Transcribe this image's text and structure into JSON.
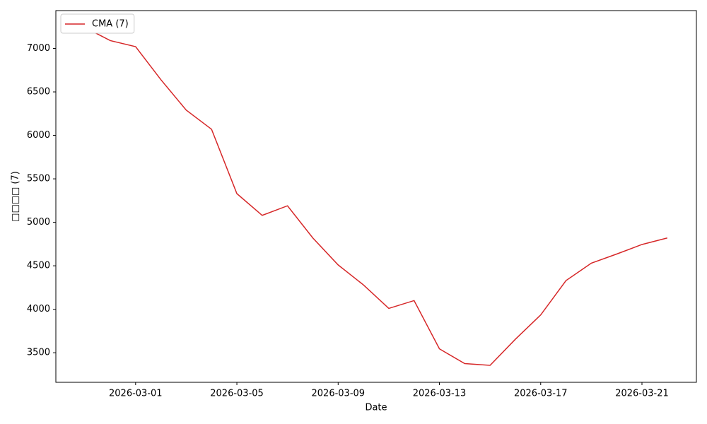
{
  "chart_data": {
    "type": "line",
    "x": [
      "2026-02-27",
      "2026-02-28",
      "2026-03-01",
      "2026-03-02",
      "2026-03-03",
      "2026-03-04",
      "2026-03-05",
      "2026-03-06",
      "2026-03-07",
      "2026-03-08",
      "2026-03-09",
      "2026-03-10",
      "2026-03-11",
      "2026-03-12",
      "2026-03-13",
      "2026-03-14",
      "2026-03-15",
      "2026-03-16",
      "2026-03-17",
      "2026-03-18",
      "2026-03-19",
      "2026-03-20",
      "2026-03-21",
      "2026-03-22"
    ],
    "series": [
      {
        "name": "CMA (7)",
        "color": "#d62728",
        "values": [
          7240,
          7090,
          7020,
          6640,
          6290,
          6070,
          5330,
          5080,
          5190,
          4820,
          4510,
          4280,
          4010,
          4100,
          3545,
          3375,
          3355,
          3655,
          3935,
          4330,
          4530,
          4635,
          4745,
          4820
        ]
      }
    ],
    "xlabel": "Date",
    "ylabel": "□□□□ (7)",
    "xlim": [
      "2026-02-25T20:24",
      "2026-03-23T03:36"
    ],
    "xticks": [
      "2026-03-01",
      "2026-03-05",
      "2026-03-09",
      "2026-03-13",
      "2026-03-17",
      "2026-03-21"
    ],
    "ylim": [
      3160,
      7435
    ],
    "yticks": [
      3500,
      4000,
      4500,
      5000,
      5500,
      6000,
      6500,
      7000
    ],
    "legend": "upper left"
  }
}
